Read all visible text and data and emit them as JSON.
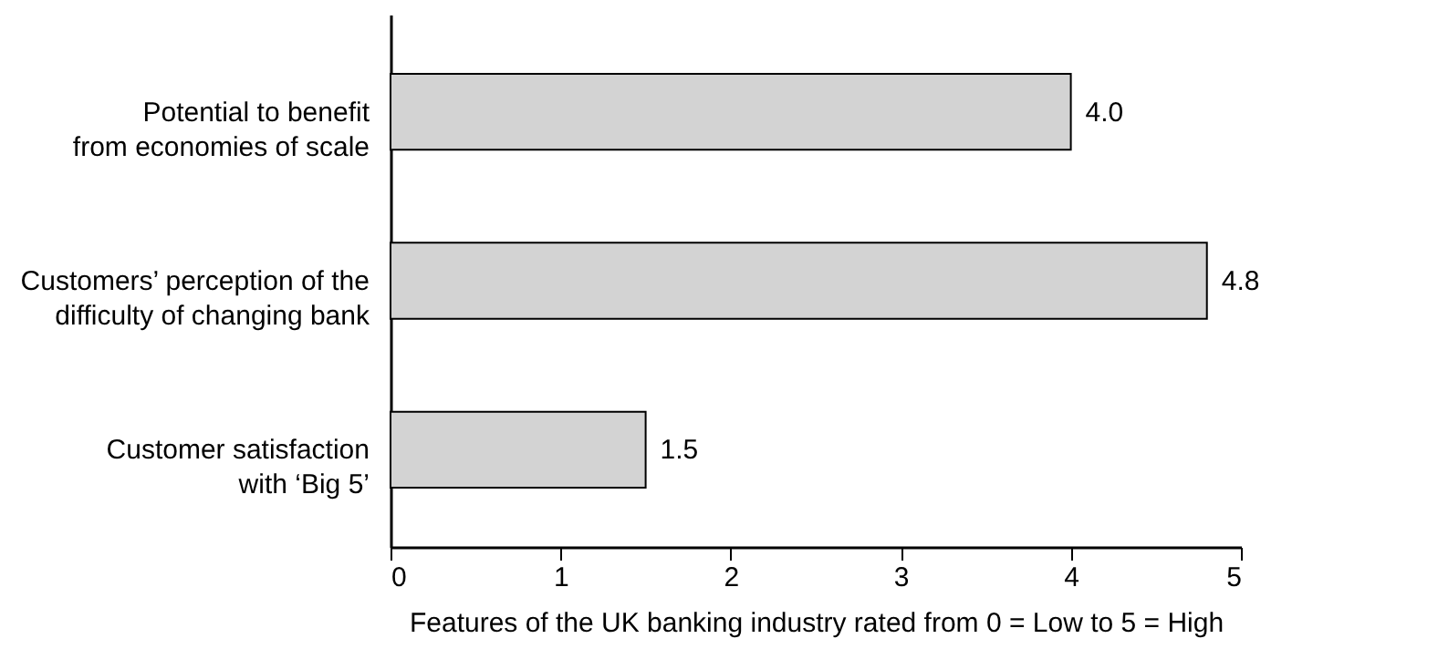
{
  "chart_data": {
    "type": "bar",
    "orientation": "horizontal",
    "categories": [
      "Potential to benefit from economies of scale",
      "Customers’ perception of the difficulty of changing bank",
      "Customer satisfaction with ‘Big 5’"
    ],
    "values": [
      4.0,
      4.8,
      1.5
    ],
    "color": "#d3d3d3",
    "xlabel": "Features of the UK banking industry rated from 0 = Low to 5 = High",
    "xlim": [
      0,
      5
    ],
    "xticks": [
      0,
      1,
      2,
      3,
      4,
      5
    ],
    "value_labels": [
      "4.0",
      "4.8",
      "1.5"
    ],
    "grid": false
  }
}
